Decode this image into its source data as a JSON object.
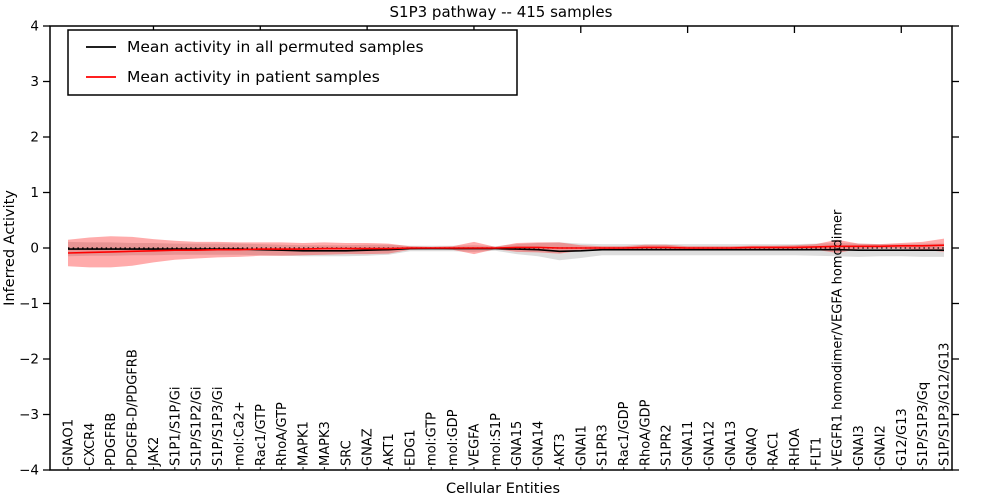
{
  "title": "S1P3 pathway -- 415 samples",
  "axes": {
    "ylabel": "Inferred Activity",
    "xlabel": "Cellular Entities",
    "ytick_labels": [
      "4",
      "3",
      "2",
      "1",
      "0",
      "−1",
      "−2",
      "−3",
      "−4"
    ],
    "ytick_values": [
      4,
      3,
      2,
      1,
      0,
      -1,
      -2,
      -3,
      -4
    ],
    "ylim": [
      -4,
      4
    ],
    "frame_color": "#000000"
  },
  "legend": {
    "items": [
      {
        "label": "Mean activity in all permuted samples",
        "color": "#000000"
      },
      {
        "label": "Mean activity in patient samples",
        "color": "#ff0000"
      }
    ]
  },
  "chart_data": {
    "type": "line",
    "title": "S1P3 pathway -- 415 samples",
    "xlabel": "Cellular Entities",
    "ylabel": "Inferred Activity",
    "ylim": [
      -4,
      4
    ],
    "grid": false,
    "legend_position": "upper left",
    "zero_line": {
      "y": 0,
      "style": "dotted",
      "color": "#000000"
    },
    "categories": [
      "GNAO1",
      "CXCR4",
      "PDGFRB",
      "PDGFB-D/PDGFRB",
      "JAK2",
      "S1P1/S1P/Gi",
      "S1P/S1P2/Gi",
      "S1P/S1P3/Gi",
      "mol:Ca2+",
      "Rac1/GTP",
      "RhoA/GTP",
      "MAPK1",
      "MAPK3",
      "SRC",
      "GNAZ",
      "AKT1",
      "EDG1",
      "mol:GTP",
      "mol:GDP",
      "VEGFA",
      "mol:S1P",
      "GNA15",
      "GNA14",
      "AKT3",
      "GNAI1",
      "S1PR3",
      "Rac1/GDP",
      "RhoA/GDP",
      "S1PR2",
      "GNA11",
      "GNA12",
      "GNA13",
      "GNAQ",
      "RAC1",
      "RHOA",
      "FLT1",
      "VEGFR1 homodimer/VEGFA homodimer",
      "GNAI3",
      "GNAI2",
      "G12/G13",
      "S1P/S1P3/Gq",
      "S1P/S1P3/G12/G13"
    ],
    "series": [
      {
        "name": "Mean activity in all permuted samples",
        "color": "#000000",
        "band_color": "#aaaaaa",
        "band_opacity": 0.4,
        "values": [
          -0.02,
          -0.02,
          -0.02,
          -0.02,
          -0.02,
          -0.02,
          -0.02,
          -0.02,
          -0.02,
          -0.03,
          -0.04,
          -0.05,
          -0.05,
          -0.05,
          -0.04,
          -0.03,
          -0.01,
          -0.01,
          -0.01,
          -0.01,
          -0.01,
          -0.02,
          -0.03,
          -0.06,
          -0.05,
          -0.03,
          -0.03,
          -0.03,
          -0.03,
          -0.03,
          -0.03,
          -0.03,
          -0.03,
          -0.03,
          -0.03,
          -0.03,
          -0.03,
          -0.04,
          -0.04,
          -0.04,
          -0.04,
          -0.04
        ],
        "band_halfwidth": [
          0.13,
          0.12,
          0.12,
          0.11,
          0.11,
          0.1,
          0.1,
          0.1,
          0.1,
          0.1,
          0.1,
          0.1,
          0.1,
          0.1,
          0.1,
          0.09,
          0.05,
          0.05,
          0.05,
          0.06,
          0.04,
          0.09,
          0.12,
          0.16,
          0.13,
          0.1,
          0.1,
          0.1,
          0.1,
          0.1,
          0.1,
          0.1,
          0.1,
          0.1,
          0.1,
          0.11,
          0.12,
          0.12,
          0.11,
          0.11,
          0.12,
          0.12
        ]
      },
      {
        "name": "Mean activity in patient samples",
        "color": "#ff0000",
        "band_color": "#ff0000",
        "band_opacity": 0.33,
        "values": [
          -0.09,
          -0.08,
          -0.07,
          -0.06,
          -0.05,
          -0.04,
          -0.04,
          -0.03,
          -0.03,
          -0.02,
          -0.02,
          -0.02,
          -0.01,
          -0.01,
          -0.01,
          -0.01,
          0.0,
          0.0,
          0.0,
          0.0,
          0.0,
          0.01,
          0.01,
          0.0,
          0.0,
          0.0,
          0.0,
          0.01,
          0.01,
          0.0,
          0.0,
          0.0,
          0.01,
          0.01,
          0.01,
          0.02,
          0.03,
          0.03,
          0.03,
          0.04,
          0.04,
          0.05
        ],
        "band_halfwidth": [
          0.24,
          0.27,
          0.28,
          0.26,
          0.21,
          0.17,
          0.15,
          0.14,
          0.13,
          0.12,
          0.12,
          0.11,
          0.11,
          0.1,
          0.1,
          0.09,
          0.03,
          0.02,
          0.03,
          0.11,
          0.02,
          0.08,
          0.09,
          0.1,
          0.05,
          0.03,
          0.03,
          0.05,
          0.05,
          0.03,
          0.03,
          0.03,
          0.03,
          0.03,
          0.04,
          0.05,
          0.12,
          0.05,
          0.04,
          0.05,
          0.07,
          0.12
        ]
      }
    ]
  }
}
